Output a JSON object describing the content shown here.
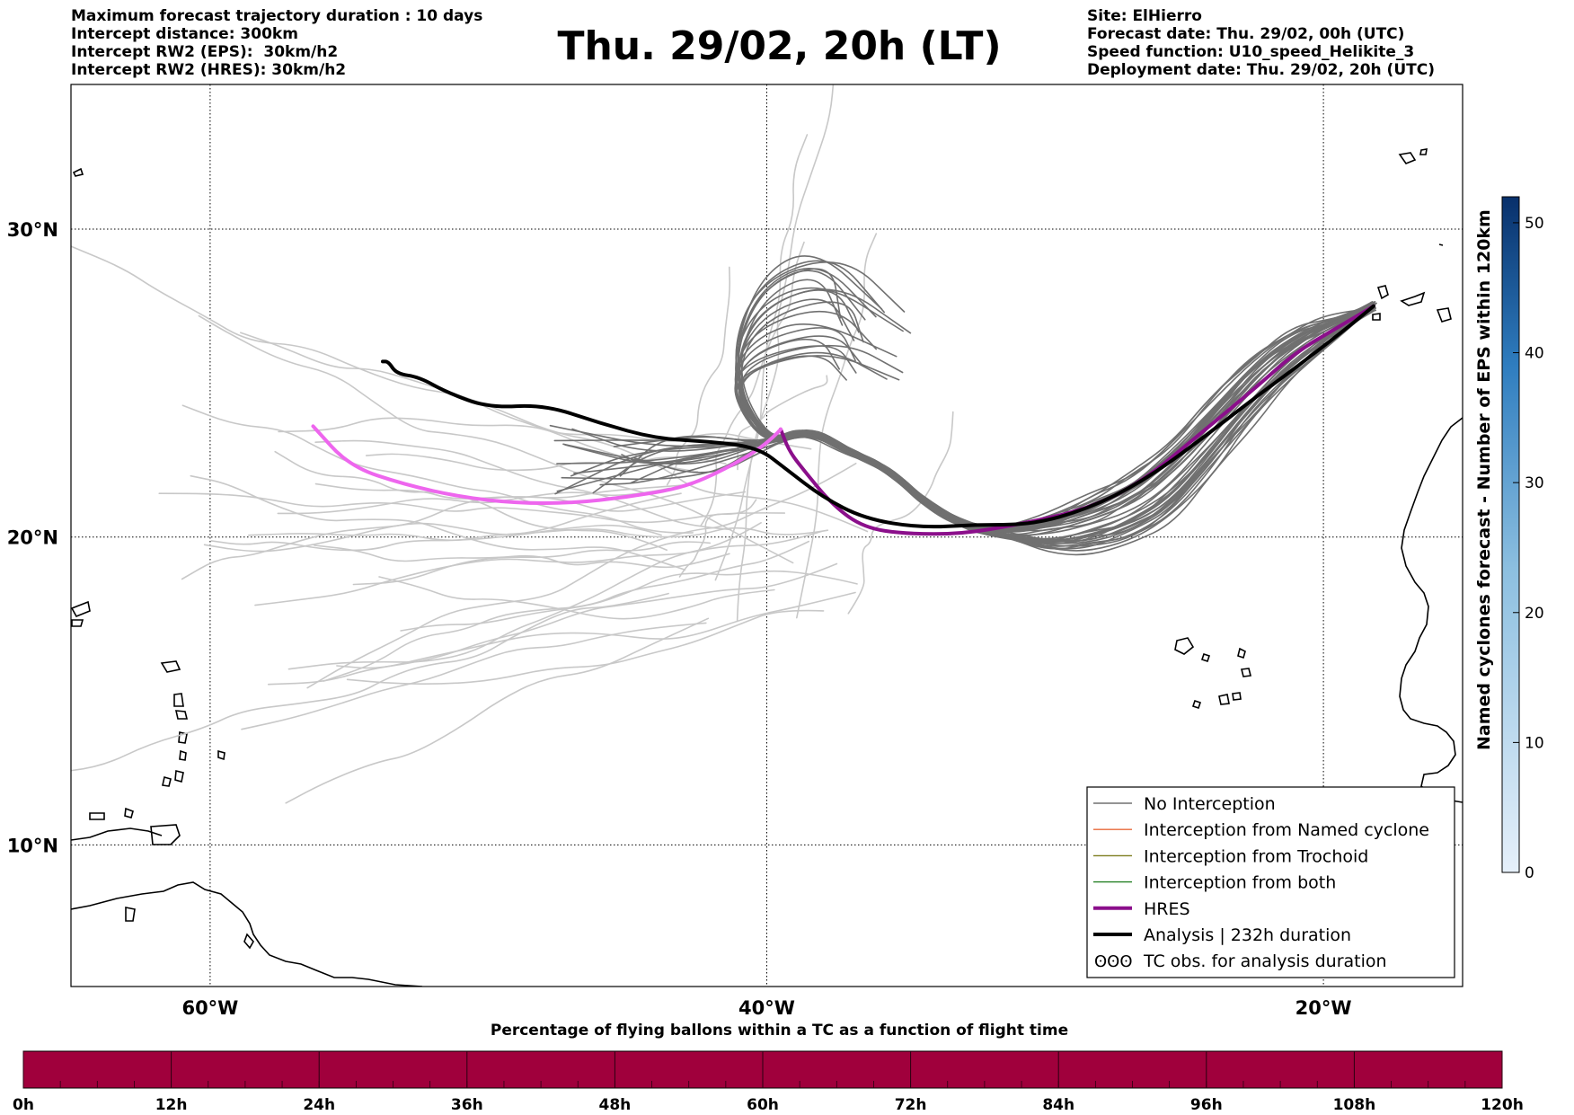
{
  "header": {
    "left": [
      "Maximum forecast trajectory duration : 10 days",
      "Intercept distance: 300km",
      "Intercept RW2 (EPS):  30km/h2",
      "Intercept RW2 (HRES): 30km/h2"
    ],
    "title": "Thu. 29/02, 20h (LT)",
    "right": [
      "Site: ElHierro",
      "Forecast date: Thu. 29/02, 00h (UTC)",
      "Speed function: U10_speed_Helikite_3",
      "Deployment date: Thu. 29/02, 20h (UTC)"
    ]
  },
  "map": {
    "lon_range": [
      -65,
      -15
    ],
    "lat_range": [
      5.4,
      34.7
    ],
    "lon_ticks": [
      {
        "value": -60,
        "label": "60°W"
      },
      {
        "value": -40,
        "label": "40°W"
      },
      {
        "value": -20,
        "label": "20°W"
      }
    ],
    "lat_ticks": [
      {
        "value": 30,
        "label": "30°N"
      },
      {
        "value": 20,
        "label": "20°N"
      },
      {
        "value": 10,
        "label": "10°N"
      }
    ],
    "grid": "dotted",
    "colors": {
      "ensemble_light": "#c8c8c8",
      "ensemble_dark": "#707070",
      "hres_after": "#8b0f8b",
      "hres_before": "#ee66ee",
      "analysis": "#000000",
      "coast": "#000000"
    }
  },
  "chart_data": {
    "type": "line",
    "x_unit": "degrees longitude (negative = W)",
    "y_unit": "degrees latitude",
    "series": [
      {
        "name": "HRES",
        "x": [
          -18.2,
          -19.5,
          -21,
          -22.5,
          -24.5,
          -26.5,
          -28.5,
          -31,
          -33,
          -35,
          -36.5,
          -37.6,
          -38.7,
          -39.2,
          -39.5,
          -40,
          -41.5,
          -43,
          -45,
          -47,
          -49,
          -51,
          -53,
          -55,
          -56.3
        ],
        "y": [
          27.5,
          26.8,
          26,
          24.8,
          23.3,
          21.8,
          20.9,
          20.4,
          20.1,
          20.1,
          20.3,
          21,
          22.2,
          22.8,
          23.5,
          23,
          22.2,
          21.6,
          21.3,
          21.1,
          21.1,
          21.3,
          21.7,
          22.3,
          23.6
        ]
      },
      {
        "name": "Analysis | 232h duration",
        "x": [
          -18.2,
          -19,
          -20,
          -21,
          -22.5,
          -24.5,
          -26.5,
          -28.5,
          -30.5,
          -32.5,
          -34.5,
          -36.5,
          -38,
          -39.3,
          -40.3,
          -42,
          -44,
          -46,
          -48,
          -50,
          -51.5,
          -52.5,
          -53.3,
          -53.6,
          -53.8
        ],
        "y": [
          27.5,
          26.9,
          26.2,
          25.5,
          24.5,
          23.1,
          21.8,
          20.9,
          20.4,
          20.4,
          20.3,
          20.6,
          21.3,
          22.2,
          22.9,
          23.1,
          23.2,
          23.7,
          24.3,
          24.2,
          24.7,
          25.2,
          25.3,
          25.7,
          25.7
        ]
      }
    ],
    "ensemble_counts": {
      "light": 38,
      "dark": 40
    },
    "legend": {
      "placement": "bottom-right",
      "items": [
        {
          "label": "No Interception",
          "color": "#707070"
        },
        {
          "label": "Interception from Named cyclone",
          "color": "#e8683a"
        },
        {
          "label": "Interception from Trochoid",
          "color": "#7c7c1c"
        },
        {
          "label": "Interception from both",
          "color": "#238023"
        },
        {
          "label": "HRES",
          "color": "#8b0f8b"
        },
        {
          "label": "Analysis | 232h duration",
          "color": "#000000"
        },
        {
          "label": "TC obs. for analysis duration",
          "symbol": "ʘʘʘ"
        }
      ]
    },
    "colorbar_vertical": {
      "label": "Named cyclones forecast - Number of EPS within 120km",
      "min": 0,
      "max": 52,
      "ticks": [
        "0",
        "10",
        "20",
        "30",
        "40",
        "50"
      ],
      "tick_values": [
        0,
        10,
        20,
        30,
        40,
        50
      ],
      "color_low": "#e6f0fa",
      "color_high": "#08306b"
    },
    "colorbar_horizontal": {
      "title": "Percentage of flying ballons within a TC as a function of flight time",
      "ticks": [
        "0h",
        "12h",
        "24h",
        "36h",
        "48h",
        "60h",
        "72h",
        "84h",
        "96h",
        "108h",
        "120h"
      ],
      "fill_color": "#a0003c"
    }
  }
}
